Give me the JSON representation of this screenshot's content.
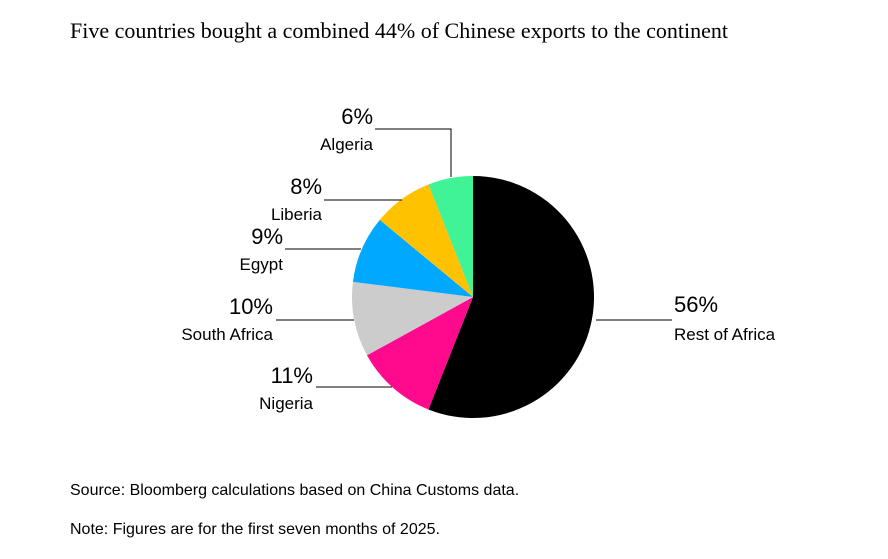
{
  "chart_data": {
    "type": "pie",
    "title": "Five countries bought a combined 44% of Chinese exports to the continent",
    "start_angle_deg": 0,
    "direction": "clockwise",
    "slices": [
      {
        "label": "Rest of Africa",
        "value": 56,
        "value_label": "56%",
        "color": "#000000"
      },
      {
        "label": "Nigeria",
        "value": 11,
        "value_label": "11%",
        "color": "#ff0a8c"
      },
      {
        "label": "South Africa",
        "value": 10,
        "value_label": "10%",
        "color": "#cccccc"
      },
      {
        "label": "Egypt",
        "value": 9,
        "value_label": "9%",
        "color": "#00a8ff"
      },
      {
        "label": "Liberia",
        "value": 8,
        "value_label": "8%",
        "color": "#ffc200"
      },
      {
        "label": "Algeria",
        "value": 6,
        "value_label": "6%",
        "color": "#3ff396"
      }
    ]
  },
  "footer": {
    "source": "Source: Bloomberg calculations based on China Customs data.",
    "note": "Note: Figures are for the first seven months of 2025."
  }
}
